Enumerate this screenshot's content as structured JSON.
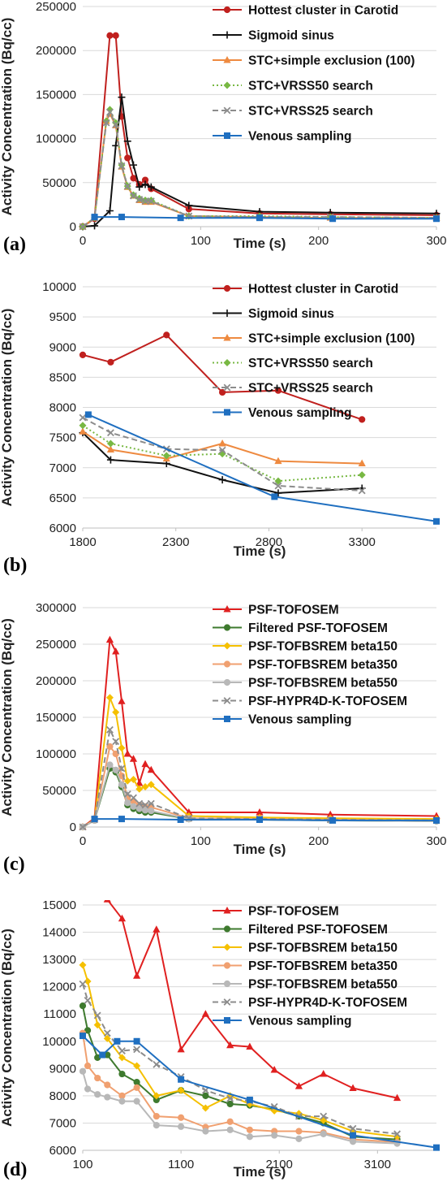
{
  "chart_data": [
    {
      "type": "line",
      "panel_label": "(a)",
      "xlabel": "Time (s)",
      "ylabel": "Activity Concentration (Bq/cc)",
      "xlim": [
        0,
        300
      ],
      "ylim": [
        0,
        250000
      ],
      "xticks": [
        0,
        100,
        200,
        300
      ],
      "yticks": [
        0,
        50000,
        100000,
        150000,
        200000,
        250000
      ],
      "grid": "horizontal",
      "legend_position": "top-right",
      "series": [
        {
          "name": "Hottest cluster in Carotid",
          "color": "#c0201e",
          "marker": "circle",
          "dash": "",
          "x": [
            0,
            10,
            23,
            28,
            33,
            38,
            43,
            48,
            53,
            58,
            90,
            150,
            210,
            300
          ],
          "y": [
            0,
            9000,
            217000,
            217000,
            125000,
            78000,
            55000,
            48000,
            53000,
            43000,
            20000,
            15000,
            14000,
            13000
          ]
        },
        {
          "name": "Sigmoid sinus",
          "color": "#111111",
          "marker": "plus",
          "dash": "",
          "x": [
            0,
            10,
            23,
            28,
            33,
            38,
            43,
            48,
            53,
            58,
            90,
            150,
            210,
            300
          ],
          "y": [
            0,
            1000,
            18000,
            92000,
            147000,
            97000,
            70000,
            45000,
            48000,
            45000,
            24000,
            17000,
            16000,
            15000
          ]
        },
        {
          "name": "STC+simple exclusion (100)",
          "color": "#ee8a40",
          "marker": "triangle",
          "dash": "",
          "x": [
            0,
            10,
            20,
            23,
            28,
            33,
            38,
            43,
            48,
            53,
            58,
            90,
            150,
            210,
            300
          ],
          "y": [
            0,
            10000,
            120000,
            128000,
            115000,
            68000,
            45000,
            35000,
            30000,
            28000,
            28000,
            12000,
            11000,
            10000,
            10000
          ]
        },
        {
          "name": "STC+VRSS50 search",
          "color": "#78b843",
          "marker": "diamond",
          "dash": "2 3",
          "x": [
            0,
            10,
            20,
            23,
            28,
            33,
            38,
            43,
            48,
            53,
            58,
            90,
            150,
            210,
            300
          ],
          "y": [
            0,
            10000,
            120000,
            133000,
            118000,
            70000,
            46000,
            36000,
            32000,
            30000,
            30000,
            12000,
            12000,
            11000,
            10000
          ]
        },
        {
          "name": "STC+VRSS25 search",
          "color": "#8c8c8c",
          "marker": "x",
          "dash": "7 4",
          "x": [
            0,
            10,
            20,
            23,
            28,
            33,
            38,
            43,
            48,
            53,
            58,
            90,
            150,
            210,
            300
          ],
          "y": [
            0,
            10000,
            118000,
            130000,
            116000,
            69000,
            46000,
            35000,
            31000,
            29000,
            29000,
            12000,
            11000,
            11000,
            10000
          ]
        },
        {
          "name": "Venous sampling",
          "color": "#1f6fc0",
          "marker": "square",
          "dash": "",
          "x": [
            10,
            33,
            83,
            150,
            212,
            300
          ],
          "y": [
            11000,
            11000,
            10000,
            10000,
            9000,
            9000
          ]
        }
      ]
    },
    {
      "type": "line",
      "panel_label": "(b)",
      "xlabel": "Time (s)",
      "ylabel": "Activity Concentration (Bq/cc)",
      "xlim": [
        1800,
        3700
      ],
      "ylim": [
        6000,
        10000
      ],
      "xticks": [
        1800,
        2300,
        2800,
        3300
      ],
      "yticks": [
        6000,
        6500,
        7000,
        7500,
        8000,
        8500,
        9000,
        9500,
        10000
      ],
      "grid": "horizontal",
      "legend_position": "top-right",
      "series": [
        {
          "name": "Hottest cluster in Carotid",
          "color": "#c0201e",
          "marker": "circle",
          "dash": "",
          "x": [
            1800,
            1950,
            2250,
            2550,
            2850,
            3300
          ],
          "y": [
            8870,
            8750,
            9200,
            8250,
            8280,
            7800
          ]
        },
        {
          "name": "Sigmoid sinus",
          "color": "#111111",
          "marker": "plus",
          "dash": "",
          "x": [
            1800,
            1950,
            2250,
            2550,
            2850,
            3300
          ],
          "y": [
            7580,
            7130,
            7070,
            6800,
            6580,
            6660
          ]
        },
        {
          "name": "STC+simple exclusion (100)",
          "color": "#ee8a40",
          "marker": "triangle",
          "dash": "",
          "x": [
            1800,
            1950,
            2250,
            2550,
            2850,
            3300
          ],
          "y": [
            7600,
            7300,
            7150,
            7400,
            7110,
            7070
          ]
        },
        {
          "name": "STC+VRSS50 search",
          "color": "#78b843",
          "marker": "diamond",
          "dash": "2 3",
          "x": [
            1800,
            1950,
            2250,
            2550,
            2850,
            3300
          ],
          "y": [
            7700,
            7400,
            7200,
            7230,
            6780,
            6880
          ]
        },
        {
          "name": "STC+VRSS25 search",
          "color": "#8c8c8c",
          "marker": "x",
          "dash": "7 4",
          "x": [
            1800,
            1950,
            2250,
            2550,
            2850,
            3300
          ],
          "y": [
            7830,
            7580,
            7310,
            7290,
            6700,
            6620
          ]
        },
        {
          "name": "Venous sampling",
          "color": "#1f6fc0",
          "marker": "square",
          "dash": "",
          "x": [
            1830,
            2830,
            3700
          ],
          "y": [
            7880,
            6520,
            6110
          ]
        }
      ]
    },
    {
      "type": "line",
      "panel_label": "(c)",
      "xlabel": "Time (s)",
      "ylabel": "Activity Concentration (Bq/cc)",
      "xlim": [
        0,
        300
      ],
      "ylim": [
        0,
        300000
      ],
      "xticks": [
        0,
        100,
        200,
        300
      ],
      "yticks": [
        0,
        50000,
        100000,
        150000,
        200000,
        250000,
        300000
      ],
      "grid": "horizontal",
      "legend_position": "top-right",
      "series": [
        {
          "name": "PSF-TOFOSEM",
          "color": "#e02020",
          "marker": "triangle",
          "dash": "",
          "x": [
            0,
            10,
            23,
            28,
            33,
            38,
            43,
            48,
            53,
            58,
            90,
            150,
            210,
            300
          ],
          "y": [
            0,
            12000,
            256000,
            240000,
            172000,
            100000,
            93000,
            60000,
            86000,
            78000,
            20000,
            20000,
            17000,
            15000
          ]
        },
        {
          "name": "Filtered PSF-TOFOSEM",
          "color": "#3e7a2e",
          "marker": "circle",
          "dash": "",
          "x": [
            0,
            10,
            23,
            28,
            33,
            38,
            43,
            48,
            53,
            58,
            90,
            150,
            210,
            300
          ],
          "y": [
            0,
            9000,
            80000,
            75000,
            55000,
            30000,
            25000,
            22000,
            20000,
            20000,
            11000,
            10000,
            9000,
            8000
          ]
        },
        {
          "name": "PSF-TOFBSREM beta150",
          "color": "#f5c000",
          "marker": "diamond",
          "dash": "",
          "x": [
            0,
            10,
            23,
            28,
            33,
            38,
            43,
            48,
            53,
            58,
            90,
            150,
            210,
            300
          ],
          "y": [
            0,
            10000,
            177000,
            157000,
            108000,
            63000,
            65000,
            52000,
            55000,
            58000,
            15000,
            13000,
            12000,
            11000
          ]
        },
        {
          "name": "PSF-TOFBSREM beta350",
          "color": "#f0a070",
          "marker": "circle",
          "dash": "",
          "x": [
            0,
            10,
            23,
            28,
            33,
            38,
            43,
            48,
            53,
            58,
            90,
            150,
            210,
            300
          ],
          "y": [
            0,
            9000,
            110000,
            100000,
            70000,
            40000,
            35000,
            30000,
            28000,
            27000,
            12000,
            11000,
            10000,
            9000
          ]
        },
        {
          "name": "PSF-TOFBSREM beta550",
          "color": "#b8b8b8",
          "marker": "circle",
          "dash": "",
          "x": [
            0,
            10,
            23,
            28,
            33,
            38,
            43,
            48,
            53,
            58,
            90,
            150,
            210,
            300
          ],
          "y": [
            0,
            9000,
            85000,
            78000,
            58000,
            33000,
            28000,
            25000,
            23000,
            22000,
            11000,
            10000,
            9000,
            8000
          ]
        },
        {
          "name": "PSF-HYPR4D-K-TOFOSEM",
          "color": "#8c8c8c",
          "marker": "x",
          "dash": "7 4",
          "x": [
            0,
            10,
            23,
            28,
            33,
            38,
            43,
            48,
            53,
            58,
            90,
            150,
            210,
            300
          ],
          "y": [
            0,
            10000,
            133000,
            117000,
            80000,
            45000,
            40000,
            32000,
            30000,
            32000,
            12000,
            11000,
            10000,
            9000
          ]
        },
        {
          "name": "Venous sampling",
          "color": "#1f6fc0",
          "marker": "square",
          "dash": "",
          "x": [
            10,
            33,
            83,
            150,
            212,
            300
          ],
          "y": [
            11000,
            11000,
            10000,
            10000,
            9000,
            9000
          ]
        }
      ]
    },
    {
      "type": "line",
      "panel_label": "(d)",
      "xlabel": "Time (s)",
      "ylabel": "Activity Concentration (Bq/cc)",
      "xlim": [
        100,
        3700
      ],
      "ylim": [
        6000,
        15000
      ],
      "xticks": [
        100,
        1100,
        2100,
        3100
      ],
      "yticks": [
        6000,
        7000,
        8000,
        9000,
        10000,
        11000,
        12000,
        13000,
        14000,
        15000
      ],
      "grid": "horizontal",
      "legend_position": "top-right",
      "series": [
        {
          "name": "PSF-TOFOSEM",
          "color": "#e02020",
          "marker": "triangle",
          "dash": "",
          "x": [
            250,
            350,
            500,
            650,
            850,
            1100,
            1350,
            1600,
            1800,
            2050,
            2300,
            2550,
            2850,
            3300
          ],
          "y": [
            16000,
            15200,
            14500,
            12400,
            14100,
            9700,
            11000,
            9850,
            9800,
            8950,
            8350,
            8800,
            8280,
            7920
          ]
        },
        {
          "name": "Filtered PSF-TOFOSEM",
          "color": "#3e7a2e",
          "marker": "circle",
          "dash": "",
          "x": [
            100,
            150,
            250,
            350,
            500,
            650,
            850,
            1100,
            1350,
            1600,
            1800,
            2050,
            2300,
            2550,
            2850,
            3300
          ],
          "y": [
            11300,
            10400,
            9400,
            9500,
            8800,
            8500,
            7850,
            8200,
            8000,
            7700,
            7650,
            7500,
            7250,
            7000,
            6500,
            6400
          ]
        },
        {
          "name": "PSF-TOFBSREM beta150",
          "color": "#f5c000",
          "marker": "diamond",
          "dash": "",
          "x": [
            100,
            150,
            250,
            350,
            500,
            650,
            850,
            1100,
            1350,
            1600,
            1800,
            2050,
            2300,
            2550,
            2850,
            3300
          ],
          "y": [
            12800,
            12200,
            10600,
            10100,
            9400,
            9100,
            8000,
            8200,
            7550,
            8000,
            7700,
            7450,
            7350,
            7100,
            6700,
            6500
          ]
        },
        {
          "name": "PSF-TOFBSREM beta350",
          "color": "#f0a070",
          "marker": "circle",
          "dash": "",
          "x": [
            100,
            150,
            250,
            350,
            500,
            650,
            850,
            1100,
            1350,
            1600,
            1800,
            2050,
            2300,
            2550,
            2850,
            3300
          ],
          "y": [
            10300,
            9100,
            8650,
            8400,
            8000,
            8300,
            7250,
            7200,
            6850,
            7050,
            6750,
            6700,
            6700,
            6650,
            6400,
            6300
          ]
        },
        {
          "name": "PSF-TOFBSREM beta550",
          "color": "#b8b8b8",
          "marker": "circle",
          "dash": "",
          "x": [
            100,
            150,
            250,
            350,
            500,
            650,
            850,
            1100,
            1350,
            1600,
            1800,
            2050,
            2300,
            2550,
            2850,
            3300
          ],
          "y": [
            8900,
            8250,
            8050,
            7950,
            7800,
            7800,
            6920,
            6870,
            6700,
            6750,
            6500,
            6550,
            6420,
            6600,
            6320,
            6250
          ]
        },
        {
          "name": "PSF-HYPR4D-K-TOFOSEM",
          "color": "#8c8c8c",
          "marker": "x",
          "dash": "7 4",
          "x": [
            100,
            150,
            250,
            350,
            500,
            650,
            850,
            1100,
            1350,
            1600,
            1800,
            2050,
            2300,
            2550,
            2850,
            3300
          ],
          "y": [
            12100,
            11500,
            10950,
            10300,
            9650,
            9700,
            9150,
            8700,
            8200,
            7900,
            7800,
            7600,
            7250,
            7250,
            6800,
            6600
          ]
        },
        {
          "name": "Venous sampling",
          "color": "#1f6fc0",
          "marker": "square",
          "dash": "",
          "x": [
            100,
            300,
            450,
            650,
            1100,
            1800,
            2850,
            3700
          ],
          "y": [
            10200,
            9500,
            10000,
            10000,
            8600,
            7850,
            6550,
            6100
          ]
        }
      ]
    }
  ]
}
